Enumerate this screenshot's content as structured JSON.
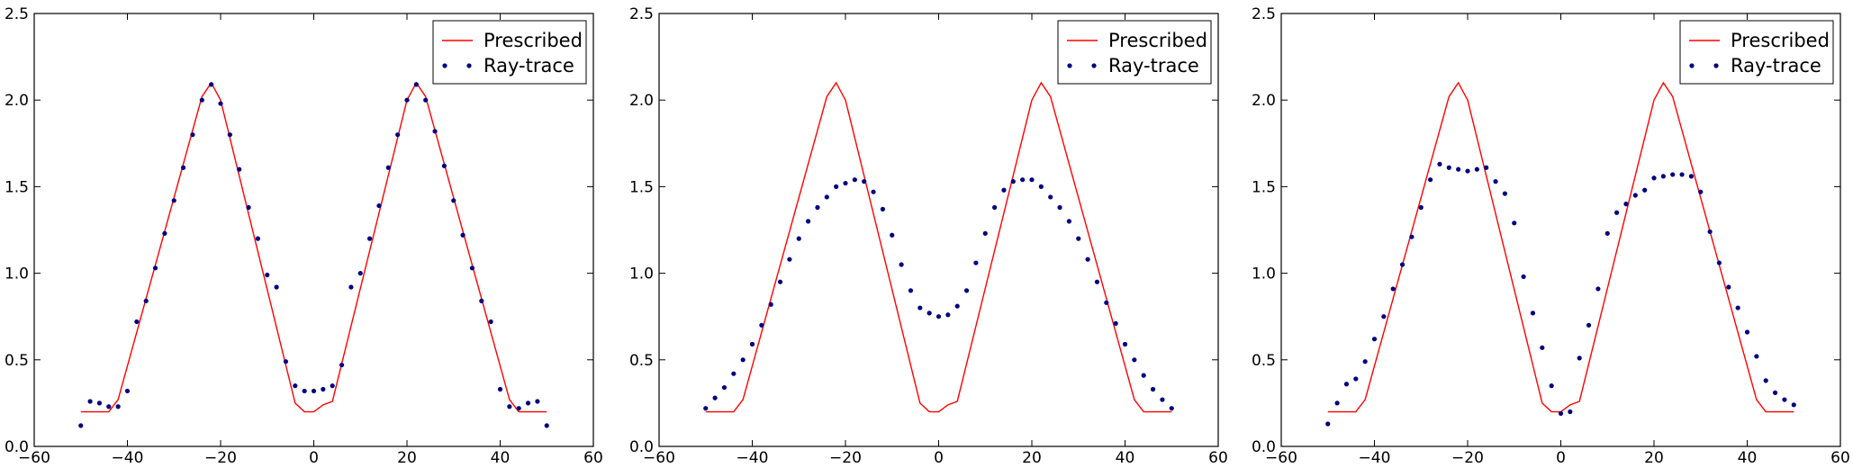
{
  "chart_data": [
    {
      "type": "line",
      "title": "",
      "xlabel": "",
      "ylabel": "",
      "xlim": [
        -60,
        60
      ],
      "ylim": [
        0.0,
        2.5
      ],
      "x_ticks": [
        "−60",
        "−40",
        "−20",
        "0",
        "20",
        "40",
        "60"
      ],
      "y_ticks": [
        "0.0",
        "0.5",
        "1.0",
        "1.5",
        "2.0",
        "2.5"
      ],
      "grid": false,
      "legend_position": "top-right",
      "series": [
        {
          "name": "Prescribed",
          "style": "line",
          "color": "#ff0000",
          "x": [
            -50,
            -44,
            -42,
            -24,
            -22,
            -20,
            -4,
            -2,
            0,
            2,
            4,
            20,
            22,
            24,
            42,
            44,
            50
          ],
          "y": [
            0.2,
            0.2,
            0.27,
            2.02,
            2.1,
            2.0,
            0.25,
            0.2,
            0.2,
            0.24,
            0.26,
            2.0,
            2.1,
            2.02,
            0.27,
            0.2,
            0.2
          ]
        },
        {
          "name": "Ray-trace",
          "style": "scatter",
          "color": "#000080",
          "x": [
            -50,
            -48,
            -46,
            -44,
            -42,
            -40,
            -38,
            -36,
            -34,
            -32,
            -30,
            -28,
            -26,
            -24,
            -22,
            -20,
            -18,
            -16,
            -14,
            -12,
            -10,
            -8,
            -6,
            -4,
            -2,
            0,
            2,
            4,
            6,
            8,
            10,
            12,
            14,
            16,
            18,
            20,
            22,
            24,
            26,
            28,
            30,
            32,
            34,
            36,
            38,
            40,
            42,
            44,
            46,
            48,
            50
          ],
          "y": [
            0.12,
            0.26,
            0.25,
            0.23,
            0.23,
            0.32,
            0.72,
            0.84,
            1.03,
            1.23,
            1.42,
            1.61,
            1.8,
            2.0,
            2.09,
            1.98,
            1.8,
            1.6,
            1.38,
            1.2,
            0.99,
            0.92,
            0.49,
            0.35,
            0.32,
            0.32,
            0.33,
            0.35,
            0.47,
            0.92,
            1.0,
            1.2,
            1.39,
            1.61,
            1.8,
            2.0,
            2.09,
            2.0,
            1.82,
            1.62,
            1.42,
            1.22,
            1.03,
            0.84,
            0.72,
            0.33,
            0.23,
            0.22,
            0.25,
            0.26,
            0.12
          ]
        }
      ]
    },
    {
      "type": "line",
      "title": "",
      "xlabel": "",
      "ylabel": "",
      "xlim": [
        -60,
        60
      ],
      "ylim": [
        0.0,
        2.5
      ],
      "x_ticks": [
        "−60",
        "−40",
        "−20",
        "0",
        "20",
        "40",
        "60"
      ],
      "y_ticks": [
        "0.0",
        "0.5",
        "1.0",
        "1.5",
        "2.0",
        "2.5"
      ],
      "grid": false,
      "legend_position": "top-right",
      "series": [
        {
          "name": "Prescribed",
          "style": "line",
          "color": "#ff0000",
          "x": [
            -50,
            -44,
            -42,
            -24,
            -22,
            -20,
            -4,
            -2,
            0,
            2,
            4,
            20,
            22,
            24,
            42,
            44,
            50
          ],
          "y": [
            0.2,
            0.2,
            0.27,
            2.02,
            2.1,
            2.0,
            0.25,
            0.2,
            0.2,
            0.24,
            0.26,
            2.0,
            2.1,
            2.02,
            0.27,
            0.2,
            0.2
          ]
        },
        {
          "name": "Ray-trace",
          "style": "scatter",
          "color": "#000080",
          "x": [
            -50,
            -48,
            -46,
            -44,
            -42,
            -40,
            -38,
            -36,
            -34,
            -32,
            -30,
            -28,
            -26,
            -24,
            -22,
            -20,
            -18,
            -16,
            -14,
            -12,
            -10,
            -8,
            -6,
            -4,
            -2,
            0,
            2,
            4,
            6,
            8,
            10,
            12,
            14,
            16,
            18,
            20,
            22,
            24,
            26,
            28,
            30,
            32,
            34,
            36,
            38,
            40,
            42,
            44,
            46,
            48,
            50
          ],
          "y": [
            0.22,
            0.28,
            0.34,
            0.42,
            0.5,
            0.59,
            0.7,
            0.82,
            0.95,
            1.08,
            1.2,
            1.3,
            1.38,
            1.44,
            1.5,
            1.52,
            1.54,
            1.53,
            1.47,
            1.37,
            1.22,
            1.05,
            0.9,
            0.8,
            0.77,
            0.75,
            0.76,
            0.81,
            0.9,
            1.06,
            1.23,
            1.38,
            1.48,
            1.53,
            1.54,
            1.54,
            1.5,
            1.44,
            1.38,
            1.3,
            1.2,
            1.08,
            0.95,
            0.83,
            0.71,
            0.59,
            0.5,
            0.41,
            0.33,
            0.27,
            0.22
          ]
        }
      ]
    },
    {
      "type": "line",
      "title": "",
      "xlabel": "",
      "ylabel": "",
      "xlim": [
        -60,
        60
      ],
      "ylim": [
        0.0,
        2.5
      ],
      "x_ticks": [
        "−60",
        "−40",
        "−20",
        "0",
        "20",
        "40",
        "60"
      ],
      "y_ticks": [
        "0.0",
        "0.5",
        "1.0",
        "1.5",
        "2.0",
        "2.5"
      ],
      "grid": false,
      "legend_position": "top-right",
      "series": [
        {
          "name": "Prescribed",
          "style": "line",
          "color": "#ff0000",
          "x": [
            -50,
            -44,
            -42,
            -24,
            -22,
            -20,
            -4,
            -2,
            0,
            2,
            4,
            20,
            22,
            24,
            42,
            44,
            50
          ],
          "y": [
            0.2,
            0.2,
            0.27,
            2.02,
            2.1,
            2.0,
            0.25,
            0.2,
            0.2,
            0.24,
            0.26,
            2.0,
            2.1,
            2.02,
            0.27,
            0.2,
            0.2
          ]
        },
        {
          "name": "Ray-trace",
          "style": "scatter",
          "color": "#000080",
          "x": [
            -50,
            -48,
            -46,
            -44,
            -42,
            -40,
            -38,
            -36,
            -34,
            -32,
            -30,
            -28,
            -26,
            -24,
            -22,
            -20,
            -18,
            -16,
            -14,
            -12,
            -10,
            -8,
            -6,
            -4,
            -2,
            0,
            2,
            4,
            6,
            8,
            10,
            12,
            14,
            16,
            18,
            20,
            22,
            24,
            26,
            28,
            30,
            32,
            34,
            36,
            38,
            40,
            42,
            44,
            46,
            48,
            50
          ],
          "y": [
            0.13,
            0.25,
            0.36,
            0.39,
            0.49,
            0.62,
            0.75,
            0.91,
            1.05,
            1.21,
            1.38,
            1.54,
            1.63,
            1.61,
            1.6,
            1.59,
            1.6,
            1.61,
            1.53,
            1.46,
            1.29,
            0.98,
            0.77,
            0.57,
            0.35,
            0.19,
            0.2,
            0.51,
            0.7,
            0.91,
            1.23,
            1.35,
            1.4,
            1.45,
            1.48,
            1.55,
            1.56,
            1.57,
            1.57,
            1.56,
            1.47,
            1.24,
            1.06,
            0.92,
            0.8,
            0.66,
            0.52,
            0.38,
            0.31,
            0.27,
            0.24
          ]
        }
      ]
    }
  ]
}
